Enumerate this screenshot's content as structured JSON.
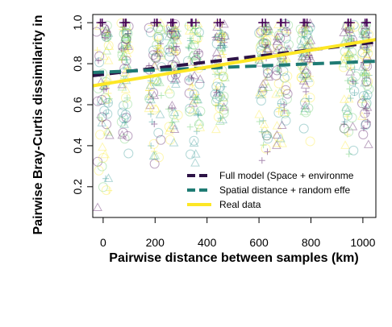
{
  "chart_data": {
    "type": "scatter",
    "xlabel": "Pairwise distance between samples (km)",
    "ylabel": "Pairwise Bray-Curtis dissimilarity in",
    "xlim": [
      -40,
      1050
    ],
    "ylim": [
      0.05,
      1.04
    ],
    "x_ticks": [
      0,
      200,
      400,
      600,
      800,
      1000
    ],
    "y_ticks": [
      0.2,
      0.4,
      0.6,
      0.8,
      1.0
    ],
    "x_tick_labels": [
      "0",
      "200",
      "400",
      "600",
      "800",
      "1000"
    ],
    "y_tick_labels": [
      "0.2",
      "0.4",
      "0.6",
      "0.8",
      "1.0"
    ],
    "legend": {
      "position": "bottom-right",
      "entries": [
        {
          "label": "Full model (Space + environme",
          "color": "#2d1346",
          "style": "dashed"
        },
        {
          "label": "Spatial distance + random effe",
          "color": "#1f7b74",
          "style": "dashed"
        },
        {
          "label": "Real data",
          "color": "#fde725",
          "style": "solid"
        }
      ]
    },
    "colors": {
      "purple": "#440154",
      "teal": "#21908c",
      "yellow": "#fde725",
      "green": "#5ec962"
    },
    "point_clusters": [
      {
        "x": 0,
        "spread": 25,
        "ymin": 0.08,
        "ymax": 1.0
      },
      {
        "x": 85,
        "spread": 15,
        "ymin": 0.35,
        "ymax": 1.0
      },
      {
        "x": 200,
        "spread": 25,
        "ymin": 0.3,
        "ymax": 1.0
      },
      {
        "x": 270,
        "spread": 20,
        "ymin": 0.4,
        "ymax": 1.0
      },
      {
        "x": 350,
        "spread": 25,
        "ymin": 0.3,
        "ymax": 1.0
      },
      {
        "x": 450,
        "spread": 20,
        "ymin": 0.4,
        "ymax": 1.0
      },
      {
        "x": 620,
        "spread": 20,
        "ymin": 0.3,
        "ymax": 1.0
      },
      {
        "x": 690,
        "spread": 25,
        "ymin": 0.35,
        "ymax": 1.0
      },
      {
        "x": 780,
        "spread": 20,
        "ymin": 0.4,
        "ymax": 1.0
      },
      {
        "x": 950,
        "spread": 25,
        "ymin": 0.3,
        "ymax": 1.0
      },
      {
        "x": 1010,
        "spread": 15,
        "ymin": 0.4,
        "ymax": 1.0
      }
    ],
    "series": [
      {
        "name": "Full model (Space + environme",
        "type": "line",
        "x": [
          -40,
          1050
        ],
        "y": [
          0.742,
          0.905
        ]
      },
      {
        "name": "Spatial distance + random effe",
        "type": "line",
        "x": [
          -40,
          1050
        ],
        "y": [
          0.757,
          0.812
        ]
      },
      {
        "name": "Real data",
        "type": "line",
        "x": [
          -40,
          1050
        ],
        "y": [
          0.692,
          0.918
        ]
      }
    ]
  }
}
